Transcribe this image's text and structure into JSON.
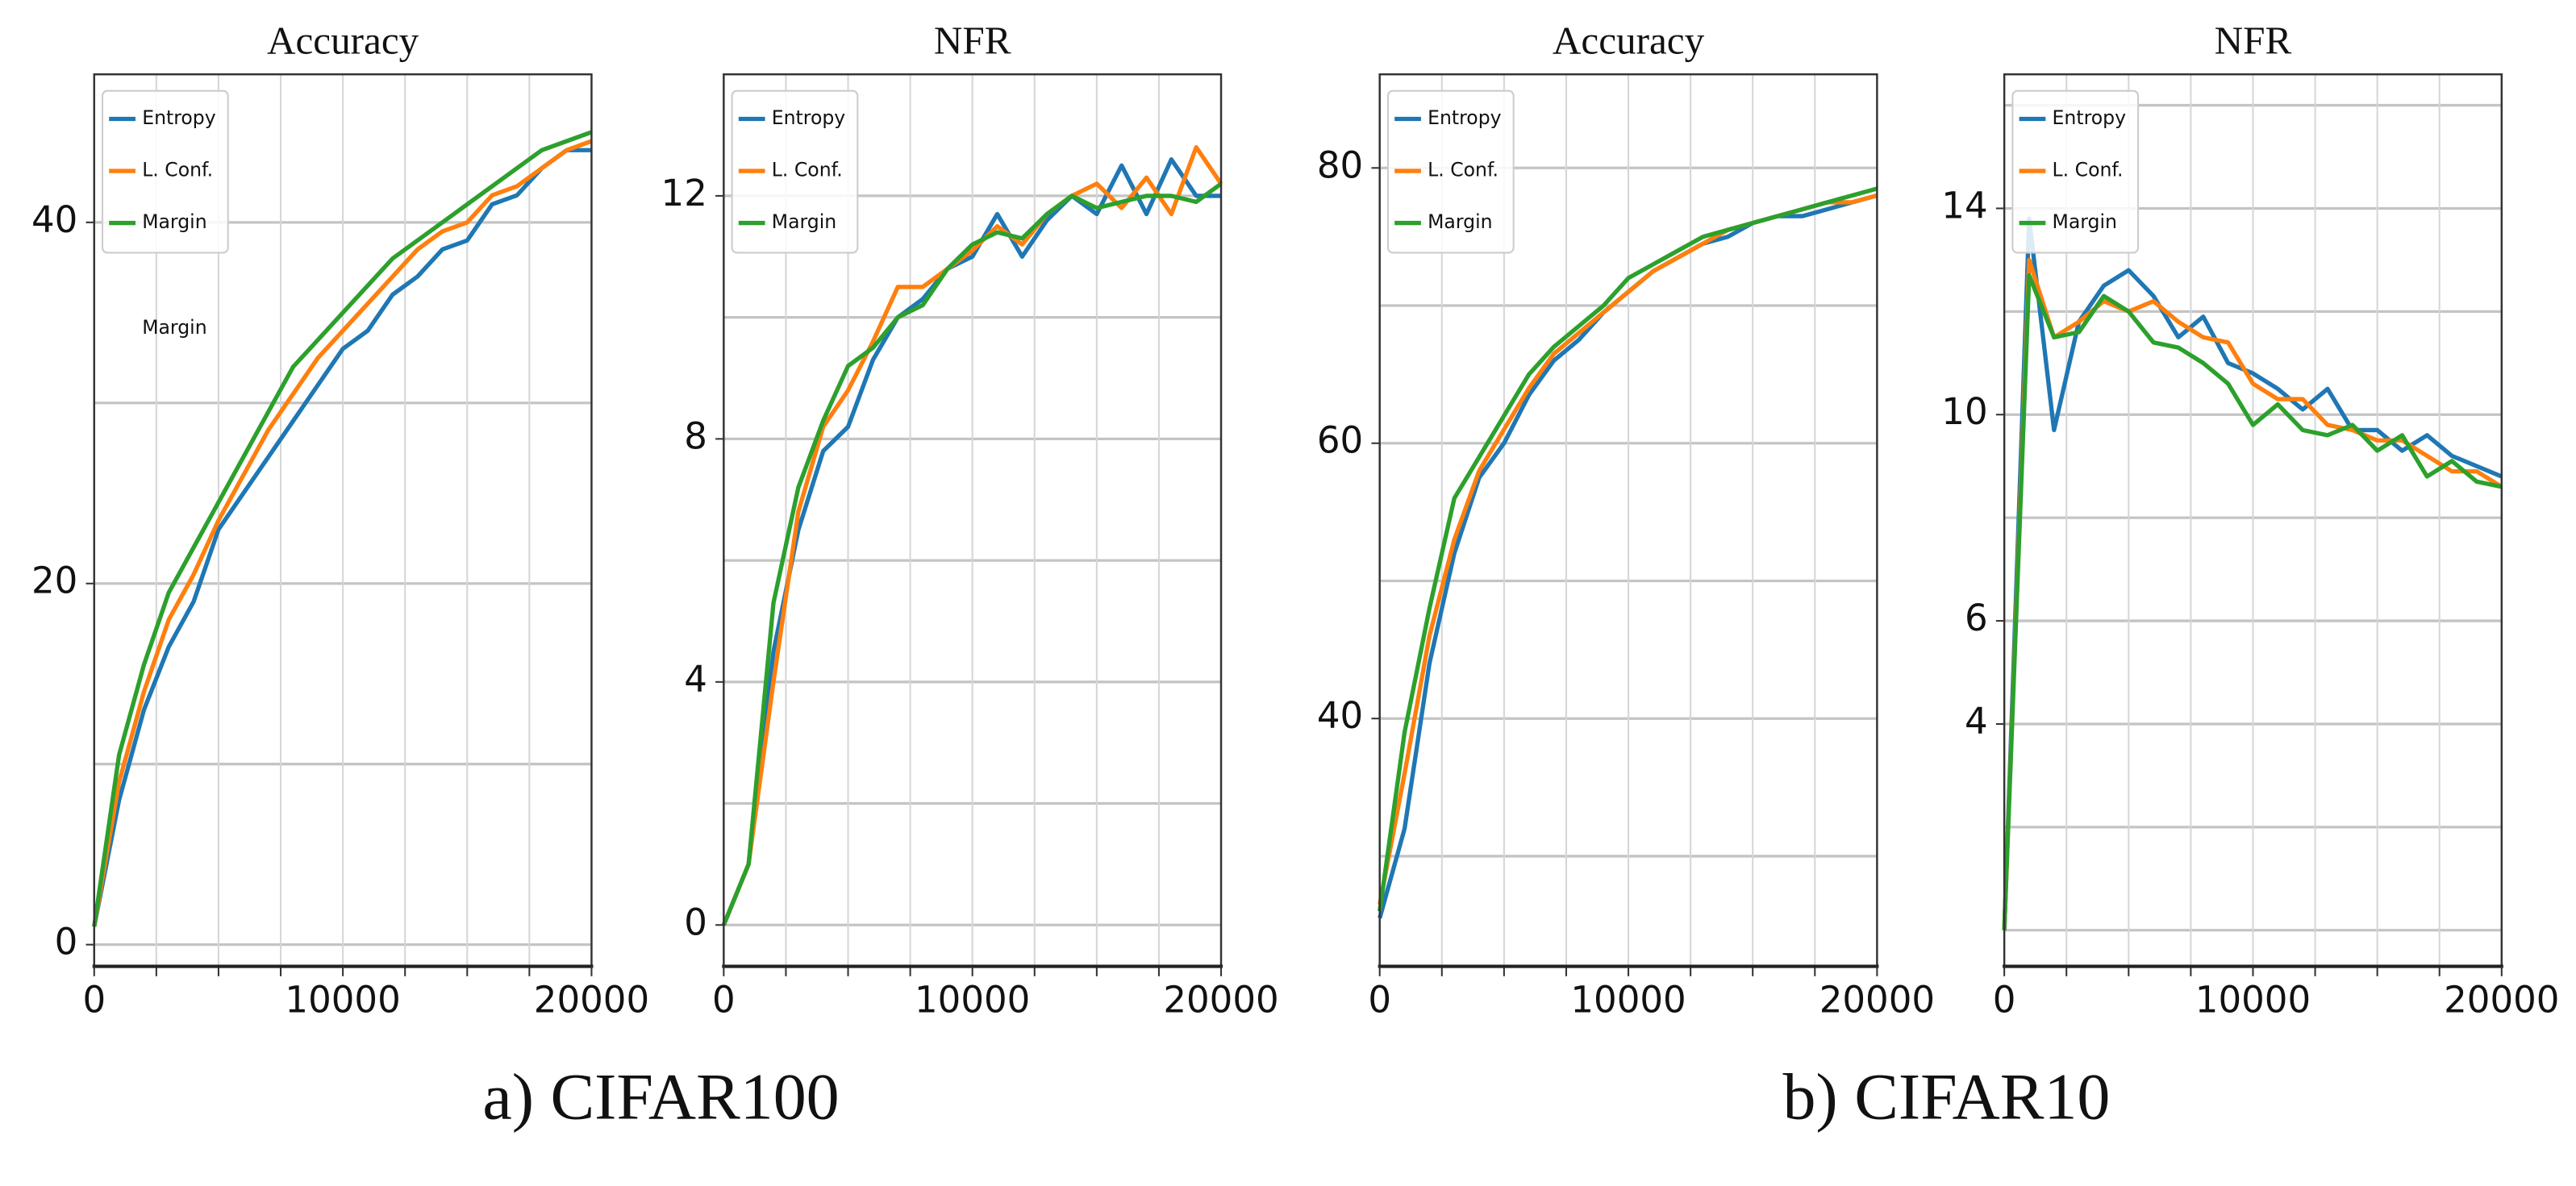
{
  "chart_data": [
    {
      "type": "line",
      "title": "Accuracy",
      "annotation": "Margin",
      "x": [
        0,
        1000,
        2000,
        3000,
        4000,
        5000,
        6000,
        7000,
        8000,
        9000,
        10000,
        11000,
        12000,
        13000,
        14000,
        15000,
        16000,
        17000,
        18000,
        19000,
        20000
      ],
      "series": [
        {
          "name": "Entropy",
          "color": "#1f77b4",
          "values": [
            1,
            8,
            13,
            16.5,
            19,
            23,
            25,
            27,
            29,
            31,
            33,
            34,
            36,
            37,
            38.5,
            39,
            41,
            41.5,
            43,
            44,
            44
          ]
        },
        {
          "name": "L. Conf.",
          "color": "#ff7f0e",
          "values": [
            1,
            9,
            14,
            18,
            20.5,
            23.5,
            26,
            28.5,
            30.5,
            32.5,
            34,
            35.5,
            37,
            38.5,
            39.5,
            40,
            41.5,
            42,
            43,
            44,
            44.5
          ]
        },
        {
          "name": "Margin",
          "color": "#2ca02c",
          "values": [
            1,
            10.5,
            15.5,
            19.5,
            22,
            24.5,
            27,
            29.5,
            32,
            33.5,
            35,
            36.5,
            38,
            39,
            40,
            41,
            42,
            43,
            44,
            44.5,
            45
          ]
        }
      ],
      "xlim": [
        0,
        20000
      ],
      "xticks": [
        0,
        10000,
        20000
      ],
      "xgrid": [
        2500,
        5000,
        7500,
        12500,
        15000,
        17500
      ],
      "ylim": [
        -1.2,
        48.2
      ],
      "yticks": [
        0,
        20,
        40
      ],
      "ygrid": [
        10,
        30
      ],
      "legend": "upper left",
      "grid": true
    },
    {
      "type": "line",
      "title": "NFR",
      "x": [
        0,
        1000,
        2000,
        3000,
        4000,
        5000,
        6000,
        7000,
        8000,
        9000,
        10000,
        11000,
        12000,
        13000,
        14000,
        15000,
        16000,
        17000,
        18000,
        19000,
        20000
      ],
      "series": [
        {
          "name": "Entropy",
          "color": "#1f77b4",
          "values": [
            0,
            1,
            4.5,
            6.5,
            7.8,
            8.2,
            9.3,
            10,
            10.3,
            10.8,
            11,
            11.7,
            11,
            11.6,
            12,
            11.7,
            12.5,
            11.7,
            12.6,
            12,
            12
          ]
        },
        {
          "name": "L. Conf.",
          "color": "#ff7f0e",
          "values": [
            0,
            1,
            4,
            6.8,
            8.2,
            8.8,
            9.6,
            10.5,
            10.5,
            10.8,
            11.1,
            11.5,
            11.2,
            11.7,
            12,
            12.2,
            11.8,
            12.3,
            11.7,
            12.8,
            12.2
          ]
        },
        {
          "name": "Margin",
          "color": "#2ca02c",
          "values": [
            0,
            1,
            5.3,
            7.2,
            8.3,
            9.2,
            9.5,
            10,
            10.2,
            10.8,
            11.2,
            11.4,
            11.3,
            11.7,
            12,
            11.8,
            11.9,
            12,
            12,
            11.9,
            12.2
          ]
        }
      ],
      "xlim": [
        0,
        20000
      ],
      "xticks": [
        0,
        10000,
        20000
      ],
      "xgrid": [
        2500,
        5000,
        7500,
        12500,
        15000,
        17500
      ],
      "ylim": [
        -0.68,
        14
      ],
      "yticks": [
        0,
        4,
        8,
        12
      ],
      "ygrid": [
        2,
        6,
        10
      ],
      "legend": "upper left",
      "grid": true
    },
    {
      "type": "line",
      "title": "Accuracy",
      "x": [
        0,
        1000,
        2000,
        3000,
        4000,
        5000,
        6000,
        7000,
        8000,
        9000,
        10000,
        11000,
        12000,
        13000,
        14000,
        15000,
        16000,
        17000,
        18000,
        19000,
        20000
      ],
      "series": [
        {
          "name": "Entropy",
          "color": "#1f77b4",
          "values": [
            25.5,
            32,
            44,
            52,
            57.5,
            60,
            63.5,
            66,
            67.5,
            69.5,
            71,
            72.5,
            73.5,
            74.5,
            75,
            76,
            76.5,
            76.5,
            77,
            77.5,
            78
          ]
        },
        {
          "name": "L. Conf.",
          "color": "#ff7f0e",
          "values": [
            26.5,
            36,
            46,
            53,
            58,
            61,
            64,
            66.5,
            68,
            69.5,
            71,
            72.5,
            73.5,
            74.5,
            75.5,
            76,
            76.5,
            77,
            77.5,
            77.5,
            78
          ]
        },
        {
          "name": "Margin",
          "color": "#2ca02c",
          "values": [
            26,
            39,
            48,
            56,
            59,
            62,
            65,
            67,
            68.5,
            70,
            72,
            73,
            74,
            75,
            75.5,
            76,
            76.5,
            77,
            77.5,
            78,
            78.5
          ]
        }
      ],
      "xlim": [
        0,
        20000
      ],
      "xticks": [
        0,
        10000,
        20000
      ],
      "xgrid": [
        2500,
        5000,
        7500,
        12500,
        15000,
        17500
      ],
      "ylim": [
        22,
        86.8
      ],
      "yticks": [
        40,
        60,
        80
      ],
      "ygrid": [
        30,
        50,
        70
      ],
      "legend": "upper left",
      "grid": true
    },
    {
      "type": "line",
      "title": "NFR",
      "x": [
        0,
        1000,
        2000,
        3000,
        4000,
        5000,
        6000,
        7000,
        8000,
        9000,
        10000,
        11000,
        12000,
        13000,
        14000,
        15000,
        16000,
        17000,
        18000,
        19000,
        20000
      ],
      "series": [
        {
          "name": "Entropy",
          "color": "#1f77b4",
          "values": [
            0,
            13.8,
            9.7,
            11.8,
            12.5,
            12.8,
            12.3,
            11.5,
            11.9,
            11,
            10.8,
            10.5,
            10.1,
            10.5,
            9.7,
            9.7,
            9.3,
            9.6,
            9.2,
            9,
            8.8
          ]
        },
        {
          "name": "L. Conf.",
          "color": "#ff7f0e",
          "values": [
            0,
            13,
            11.5,
            11.8,
            12.2,
            12,
            12.2,
            11.8,
            11.5,
            11.4,
            10.6,
            10.3,
            10.3,
            9.8,
            9.7,
            9.5,
            9.5,
            9.2,
            8.9,
            8.9,
            8.6
          ]
        },
        {
          "name": "Margin",
          "color": "#2ca02c",
          "values": [
            0,
            12.7,
            11.5,
            11.6,
            12.3,
            12,
            11.4,
            11.3,
            11,
            10.6,
            9.8,
            10.2,
            9.7,
            9.6,
            9.8,
            9.3,
            9.6,
            8.8,
            9.1,
            8.7,
            8.6
          ]
        }
      ],
      "xlim": [
        0,
        20000
      ],
      "xticks": [
        0,
        10000,
        20000
      ],
      "xgrid": [
        2500,
        5000,
        7500,
        12500,
        15000,
        17500
      ],
      "ylim": [
        -0.7,
        16.6
      ],
      "yticks": [
        4,
        6,
        10,
        14
      ],
      "ygrid": [
        0,
        2,
        8,
        12,
        16
      ],
      "legend": "upper left",
      "grid": true
    }
  ],
  "captions": [
    "a) CIFAR100",
    "b) CIFAR10"
  ]
}
